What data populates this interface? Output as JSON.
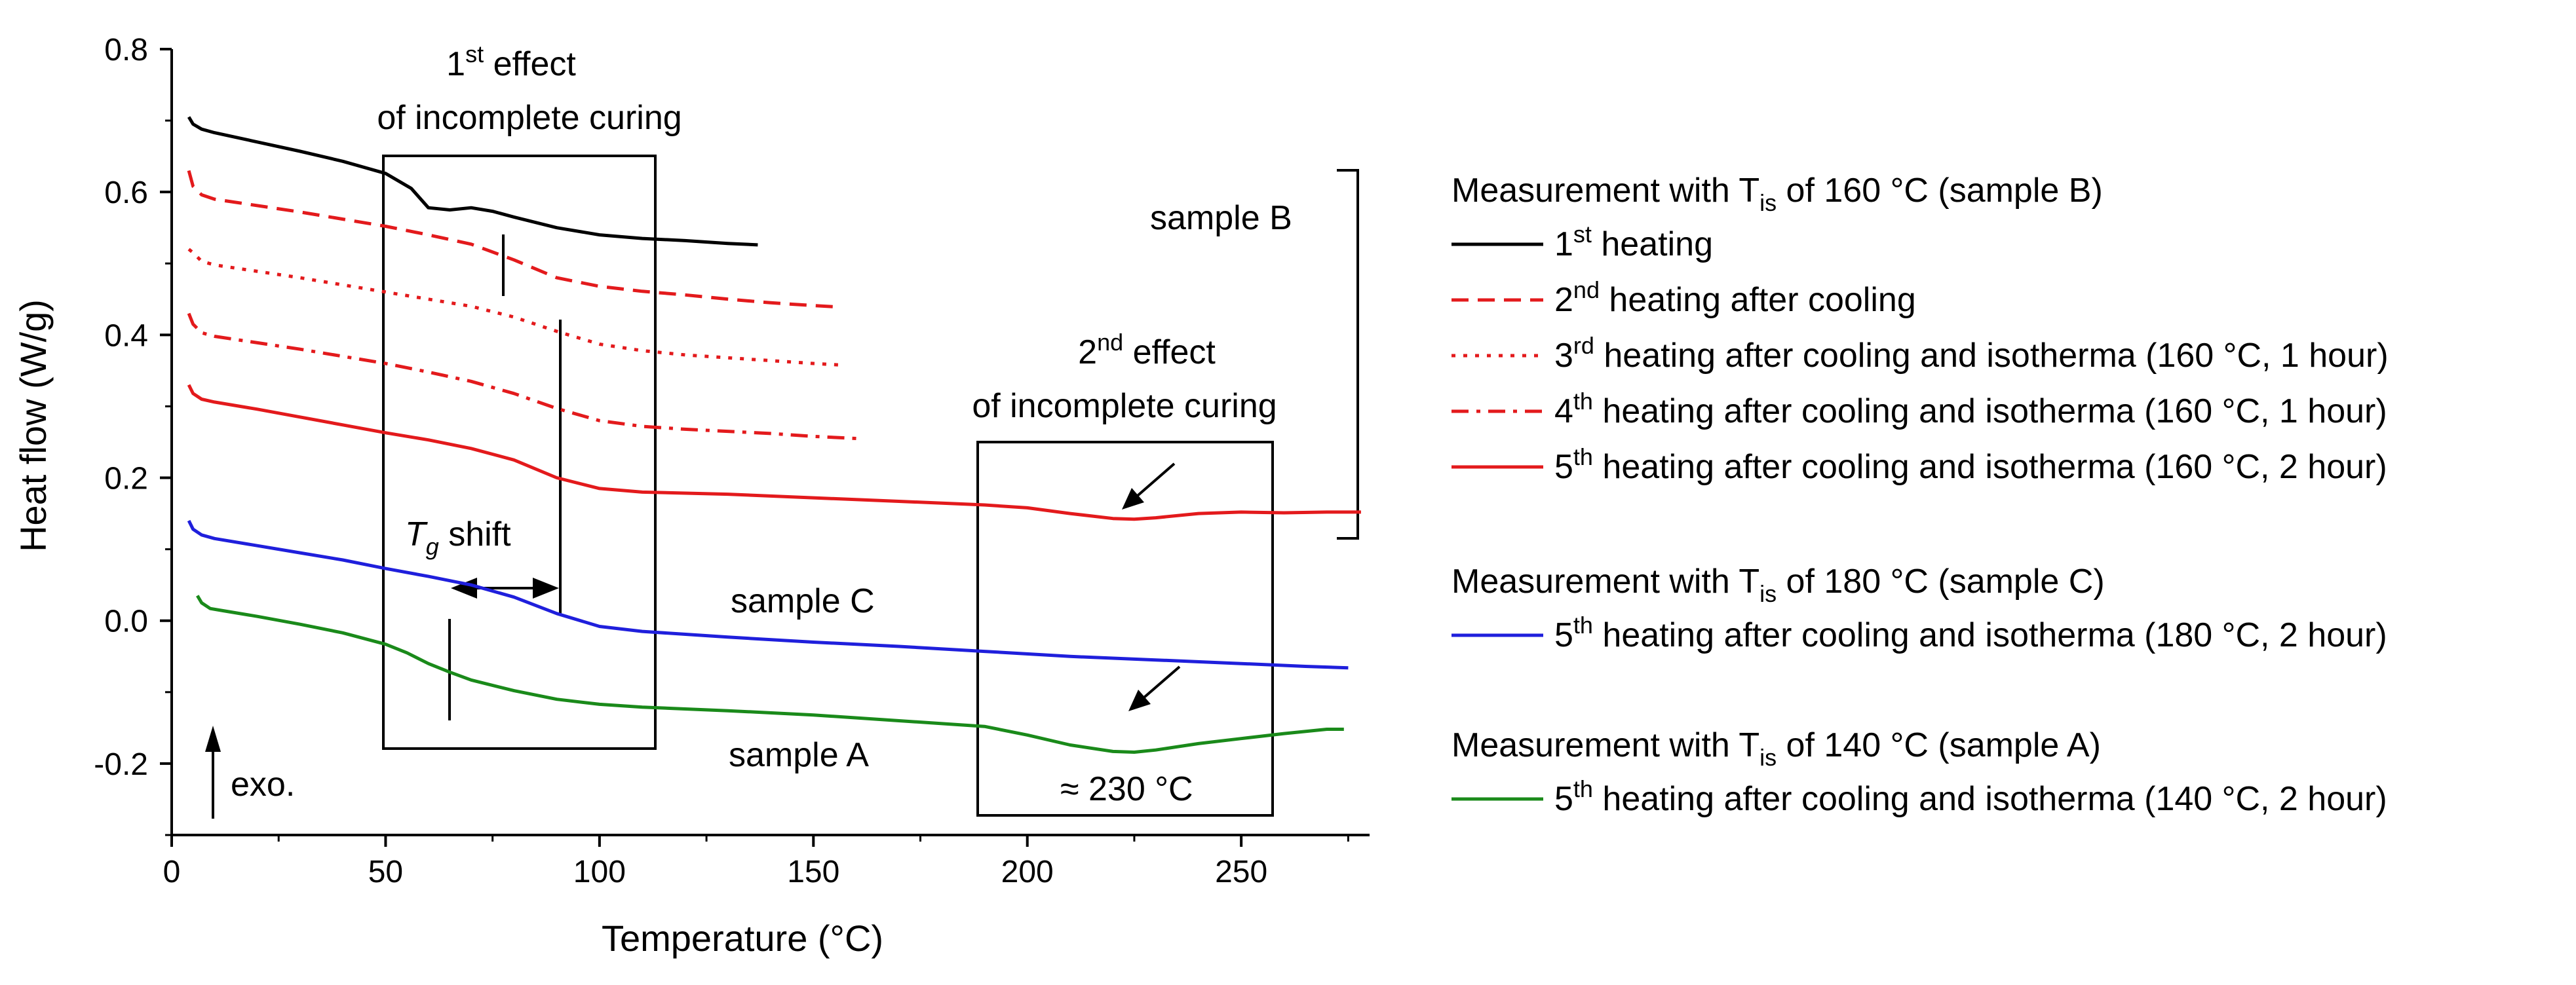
{
  "chart_data": {
    "type": "line",
    "xlabel": "Temperature (°C)",
    "ylabel": "Heat flow (W/g)",
    "xlim": [
      0,
      280
    ],
    "ylim": [
      -0.3,
      0.8
    ],
    "xticks": [
      0,
      50,
      100,
      150,
      200,
      250
    ],
    "xtick_labels": [
      "0",
      "50",
      "100",
      "150",
      "200",
      "250"
    ],
    "yticks": [
      0.8,
      0.6,
      0.4,
      0.2,
      0.0,
      -0.2
    ],
    "ytick_labels": [
      "0.8",
      "0.6",
      "0.4",
      "0.2",
      "0.0",
      "-0.2"
    ],
    "grid": false,
    "colors": {
      "black": "#000000",
      "red": "#e31a1c",
      "blue": "#1f1fdc",
      "green": "#1a8a1a"
    },
    "series": [
      {
        "name": "1st heating",
        "group": "B",
        "color": "#000000",
        "dash": "solid",
        "x": [
          4,
          5,
          7,
          10,
          20,
          30,
          40,
          50,
          56,
          60,
          65,
          70,
          75,
          80,
          90,
          100,
          110,
          120,
          130,
          137
        ],
        "y": [
          0.705,
          0.695,
          0.688,
          0.683,
          0.67,
          0.657,
          0.643,
          0.626,
          0.605,
          0.578,
          0.575,
          0.578,
          0.573,
          0.565,
          0.55,
          0.54,
          0.535,
          0.532,
          0.528,
          0.526
        ]
      },
      {
        "name": "2nd heating after cooling",
        "group": "B",
        "color": "#e31a1c",
        "dash": "dash",
        "x": [
          4,
          5,
          7,
          10,
          30,
          50,
          60,
          70,
          80,
          90,
          100,
          110,
          120,
          130,
          140,
          150,
          156
        ],
        "y": [
          0.63,
          0.608,
          0.596,
          0.59,
          0.572,
          0.552,
          0.54,
          0.527,
          0.505,
          0.48,
          0.468,
          0.461,
          0.456,
          0.45,
          0.445,
          0.441,
          0.439
        ]
      },
      {
        "name": "3rd heating after cooling and isotherma (160 °C, 1 hour)",
        "group": "B",
        "color": "#e31a1c",
        "dash": "dot",
        "x": [
          4,
          5,
          7,
          10,
          30,
          50,
          60,
          70,
          80,
          90,
          100,
          110,
          120,
          130,
          140,
          150,
          156
        ],
        "y": [
          0.52,
          0.515,
          0.503,
          0.498,
          0.48,
          0.46,
          0.45,
          0.44,
          0.425,
          0.405,
          0.387,
          0.378,
          0.372,
          0.368,
          0.364,
          0.36,
          0.358
        ]
      },
      {
        "name": "4th heating after cooling and isotherma (160 °C, 1 hour)",
        "group": "B",
        "color": "#e31a1c",
        "dash": "dashdot",
        "x": [
          4,
          5,
          7,
          10,
          30,
          50,
          60,
          70,
          80,
          90,
          100,
          110,
          120,
          130,
          140,
          150,
          160
        ],
        "y": [
          0.43,
          0.415,
          0.403,
          0.398,
          0.38,
          0.36,
          0.348,
          0.335,
          0.318,
          0.297,
          0.28,
          0.272,
          0.268,
          0.265,
          0.262,
          0.258,
          0.255
        ]
      },
      {
        "name": "5th heating after cooling and isotherma (160 °C, 2 hour)",
        "group": "B",
        "color": "#e31a1c",
        "dash": "solid",
        "x": [
          4,
          5,
          7,
          10,
          20,
          30,
          40,
          50,
          60,
          70,
          80,
          90,
          100,
          110,
          130,
          150,
          170,
          190,
          200,
          210,
          220,
          225,
          230,
          240,
          250,
          260,
          270,
          278
        ],
        "y": [
          0.33,
          0.318,
          0.31,
          0.306,
          0.296,
          0.285,
          0.274,
          0.263,
          0.253,
          0.241,
          0.225,
          0.2,
          0.185,
          0.18,
          0.177,
          0.172,
          0.167,
          0.162,
          0.158,
          0.15,
          0.143,
          0.142,
          0.144,
          0.15,
          0.152,
          0.151,
          0.152,
          0.152
        ]
      },
      {
        "name": "5th heating after cooling and isotherma (180 °C, 2 hour)",
        "group": "C",
        "color": "#1f1fdc",
        "dash": "solid",
        "x": [
          4,
          5,
          7,
          10,
          20,
          30,
          40,
          50,
          60,
          70,
          80,
          90,
          100,
          110,
          130,
          150,
          170,
          190,
          210,
          230,
          250,
          265,
          275
        ],
        "y": [
          0.14,
          0.128,
          0.12,
          0.115,
          0.105,
          0.095,
          0.085,
          0.073,
          0.062,
          0.05,
          0.033,
          0.01,
          -0.008,
          -0.015,
          -0.023,
          -0.03,
          -0.036,
          -0.043,
          -0.05,
          -0.055,
          -0.06,
          -0.064,
          -0.066
        ]
      },
      {
        "name": "5th heating after cooling and isotherma (140 °C, 2 hour)",
        "group": "A",
        "color": "#1a8a1a",
        "dash": "solid",
        "x": [
          6,
          7,
          9,
          12,
          20,
          30,
          40,
          50,
          55,
          60,
          65,
          70,
          80,
          90,
          100,
          110,
          130,
          150,
          170,
          190,
          200,
          210,
          220,
          225,
          230,
          240,
          250,
          260,
          270,
          274
        ],
        "y": [
          0.035,
          0.025,
          0.017,
          0.014,
          0.006,
          -0.005,
          -0.017,
          -0.033,
          -0.045,
          -0.06,
          -0.072,
          -0.083,
          -0.098,
          -0.11,
          -0.117,
          -0.121,
          -0.126,
          -0.132,
          -0.14,
          -0.148,
          -0.16,
          -0.174,
          -0.183,
          -0.184,
          -0.181,
          -0.172,
          -0.165,
          -0.158,
          -0.152,
          -0.152
        ]
      }
    ],
    "annotations": {
      "effect1_sup": "st",
      "effect1_line1": "effect",
      "effect1_num": "1",
      "effect1_line2": "of incomplete curing",
      "effect2_num": "2",
      "effect2_sup": "nd",
      "effect2_line1": "effect",
      "effect2_line2": "of incomplete curing",
      "tg_symbol": "T",
      "tg_sub": "g",
      "tg_shift": "shift",
      "sample_b": "sample B",
      "sample_c": "sample C",
      "sample_a": "sample A",
      "peak_temp": "≈ 230 °C",
      "exo": "exo."
    },
    "legend": {
      "group_b_title": {
        "pre": "Measurement with T",
        "sub": "is",
        "post": " of 160 °C (sample B)"
      },
      "group_c_title": {
        "pre": "Measurement with T",
        "sub": "is",
        "post": " of 180 °C (sample C)"
      },
      "group_a_title": {
        "pre": "Measurement with T",
        "sub": "is",
        "post": " of 140 °C (sample A)"
      },
      "entries": [
        {
          "num": "1",
          "sup": "st",
          "text": " heating"
        },
        {
          "num": "2",
          "sup": "nd",
          "text": " heating after cooling"
        },
        {
          "num": "3",
          "sup": "rd",
          "text": " heating after cooling and isotherma (160 °C, 1 hour)"
        },
        {
          "num": "4",
          "sup": "th",
          "text": " heating after cooling and isotherma (160 °C, 1 hour)"
        },
        {
          "num": "5",
          "sup": "th",
          "text": " heating after cooling and isotherma (160 °C, 2 hour)"
        },
        {
          "num": "5",
          "sup": "th",
          "text": " heating after cooling and isotherma (180 °C, 2 hour)"
        },
        {
          "num": "5",
          "sup": "th",
          "text": " heating after cooling and isotherma (140 °C, 2 hour)"
        }
      ]
    }
  }
}
